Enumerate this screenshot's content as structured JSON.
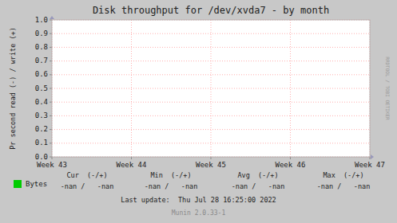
{
  "chart_data": {
    "type": "line",
    "title": "Disk throughput for /dev/xvda7 - by month",
    "y_label": "Pr second read (-) / write (+)",
    "categories": [
      "Week 43",
      "Week 44",
      "Week 45",
      "Week 46",
      "Week 47"
    ],
    "series": [
      {
        "name": "Bytes",
        "color": "#00cc00",
        "values": [
          null,
          null,
          null,
          null,
          null
        ]
      }
    ],
    "ylim": [
      0.0,
      1.0
    ],
    "yticks": [
      {
        "value": 0.0,
        "label": "0.0"
      },
      0.1,
      0.2,
      0.3,
      0.4,
      0.5,
      0.6,
      0.7,
      0.8,
      0.9,
      {
        "value": 1.0,
        "label": "1.0"
      }
    ],
    "grid": true,
    "legend": "bottom",
    "annotations": [
      "Cur  (-/+)",
      "Min  (-/+)",
      "Avg  (-/+)",
      "Max  (-/+)",
      "-nan /   -nan",
      "-nan /   -nan",
      "-nan /   -nan",
      "-nan /   -nan",
      "Last update:  Thu Jul 28 16:25:00 2022",
      "Munin 2.0.33-1",
      "RRDTOOL / TOBI OETIKER"
    ]
  }
}
